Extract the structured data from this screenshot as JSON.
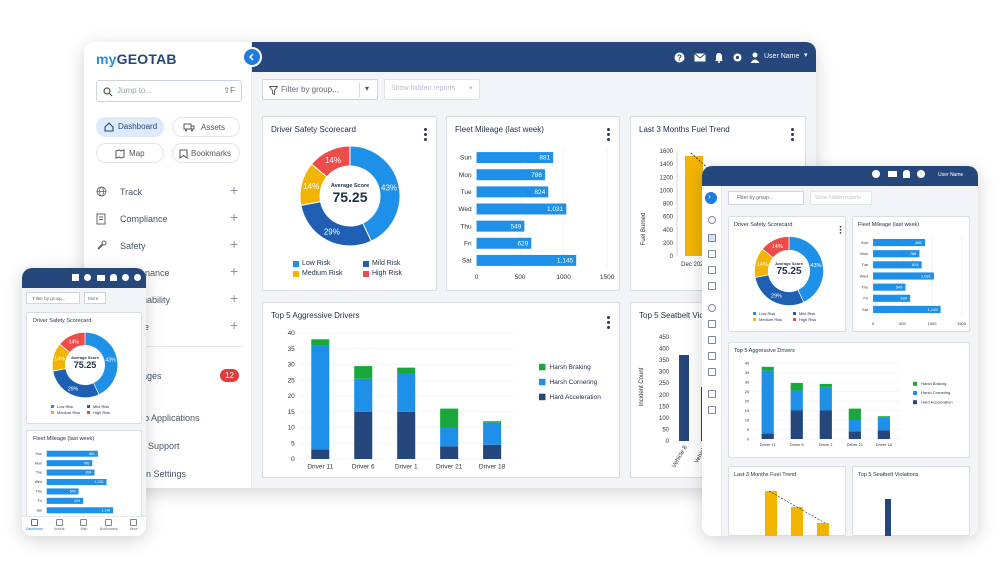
{
  "brand": {
    "logo": "myGEOTAB",
    "logo_prefix": "my",
    "logo_main": "GEOTAB"
  },
  "header": {
    "user_name": "User Name"
  },
  "search": {
    "placeholder": "Jump to...",
    "shortcut": "⇧F"
  },
  "quicknav": [
    {
      "label": "Dashboard",
      "icon": "home-icon"
    },
    {
      "label": "Assets",
      "icon": "truck-icon"
    },
    {
      "label": "Map",
      "icon": "map-icon"
    },
    {
      "label": "Bookmarks",
      "icon": "bookmark-icon"
    }
  ],
  "sidebar": {
    "items": [
      {
        "label": "Track",
        "icon": "globe-icon"
      },
      {
        "label": "Compliance",
        "icon": "clipboard-icon"
      },
      {
        "label": "Safety",
        "icon": "wrench-icon"
      },
      {
        "label": "enance",
        "icon": ""
      },
      {
        "label": "nability",
        "icon": ""
      },
      {
        "label": "e",
        "icon": ""
      }
    ],
    "messages_label": "ages",
    "messages_count": "12",
    "lower_items": [
      "b Applications",
      "Support",
      "n Settings"
    ]
  },
  "toolbar": {
    "filter_placeholder": "Filter by group...",
    "hidden_reports": "Show hidden reports"
  },
  "cards": {
    "driver_safety": {
      "title": "Driver Safety Scorecard",
      "center_label": "Average Score",
      "center_value": "75.25",
      "segments": [
        {
          "label": "Low Risk",
          "value": 43,
          "pct": "43%",
          "color": "#1e90e8"
        },
        {
          "label": "Mild Risk",
          "value": 29,
          "pct": "29%",
          "color": "#1e5fb4"
        },
        {
          "label": "Medium Risk",
          "value": 14,
          "pct": "14%",
          "color": "#f3b400"
        },
        {
          "label": "High Risk",
          "value": 14,
          "pct": "14%",
          "color": "#ee4b4b"
        }
      ]
    },
    "fleet_mileage": {
      "title": "Fleet Mileage (last week)"
    },
    "fuel_trend": {
      "title": "Last 3 Months Fuel Trend",
      "xlabel": "Dec 2022",
      "ylabel": "Fuel Burned",
      "yticks": [
        "1600",
        "1400",
        "1200",
        "1000",
        "800",
        "600",
        "400",
        "200",
        "0"
      ]
    },
    "aggressive": {
      "title": "Top 5 Aggressive Drivers"
    },
    "seatbelt": {
      "title": "Top 5 Seatbelt Vio",
      "ylabel": "Incident Count",
      "categories": [
        "Vehicle 8",
        "Vehicle"
      ],
      "yticks": [
        "450",
        "400",
        "350",
        "300",
        "250",
        "200",
        "150",
        "100",
        "50",
        "0"
      ]
    }
  },
  "chart_data": [
    {
      "type": "pie",
      "title": "Driver Safety Scorecard",
      "categories": [
        "Low Risk",
        "Mild Risk",
        "Medium Risk",
        "High Risk"
      ],
      "values": [
        43,
        29,
        14,
        14
      ]
    },
    {
      "type": "bar",
      "title": "Fleet Mileage (last week)",
      "categories": [
        "Sun",
        "Mon",
        "Tue",
        "Wed",
        "Thu",
        "Fri",
        "Sat"
      ],
      "values": [
        881,
        786,
        824,
        1031,
        549,
        629,
        1145
      ],
      "labels": [
        "881",
        "786",
        "824",
        "1,031",
        "549",
        "629",
        "1,145"
      ],
      "xticks": [
        "0",
        "500",
        "1000",
        "1500"
      ],
      "xlim": [
        0,
        1500
      ]
    },
    {
      "type": "bar",
      "title": "Top 5 Aggressive Drivers",
      "categories": [
        "Driver 11",
        "Driver 6",
        "Driver 1",
        "Driver 21",
        "Driver 18"
      ],
      "yticks": [
        "40",
        "35",
        "30",
        "25",
        "20",
        "15",
        "10",
        "5",
        "0"
      ],
      "ylim": [
        0,
        40
      ],
      "series": [
        {
          "name": "Hard Acceleration",
          "color": "#25477b",
          "values": [
            3,
            15,
            15,
            4,
            4.5
          ]
        },
        {
          "name": "Harsh Cornering",
          "color": "#1e90e8",
          "values": [
            33,
            10.5,
            12,
            6,
            7
          ]
        },
        {
          "name": "Harsh Braking",
          "color": "#1aa83c",
          "values": [
            2,
            4,
            2,
            6,
            0.5
          ]
        }
      ]
    }
  ],
  "mobile": {
    "filter": "Filter by group...",
    "more": "More",
    "tabs": [
      "Dashboard",
      "Assets",
      "Map",
      "Bookmarks",
      "More"
    ]
  },
  "tablet": {
    "filter": "Filter by group...",
    "hidden": "Show hidden reports"
  }
}
